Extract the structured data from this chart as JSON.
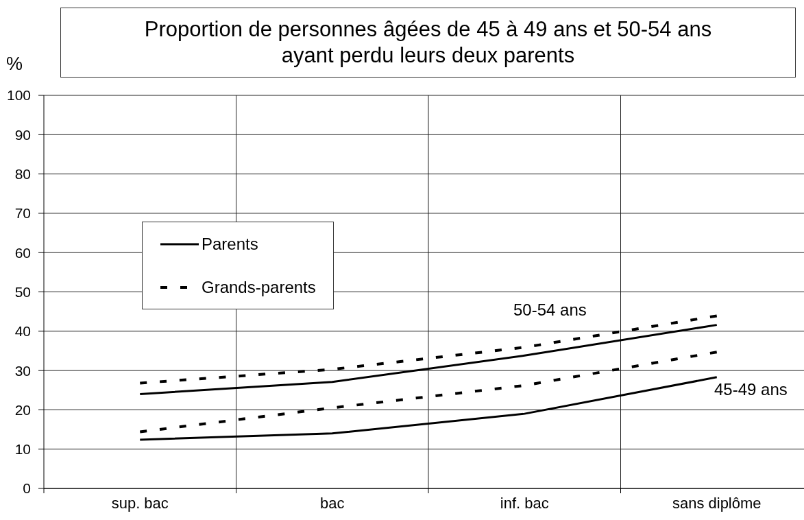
{
  "chart_data": {
    "type": "line",
    "title": "Proportion de personnes âgées de 45 à 49 ans et 50-54 ans ayant perdu leurs deux parents",
    "ylabel": "%",
    "categories": [
      "sup. bac",
      "bac",
      "inf. bac",
      "sans diplôme"
    ],
    "series": [
      {
        "name": "Parents",
        "color": "#000000",
        "line_style": "solid",
        "values": [
          24,
          27.1,
          33.8,
          41.6
        ]
      },
      {
        "name": "Grands-parents",
        "color": "#000000",
        "line_style": "dashed",
        "values": [
          26.8,
          30.3,
          35.9,
          43.9
        ]
      },
      {
        "color": "#000000",
        "line_style": "solid",
        "values": [
          12.4,
          14,
          19,
          28.3
        ]
      },
      {
        "color": "#000000",
        "line_style": "dashed",
        "values": [
          14.4,
          20.5,
          26.2,
          34.7
        ]
      }
    ],
    "ylim": [
      0,
      100
    ],
    "yticks": [
      0,
      10,
      20,
      30,
      40,
      50,
      60,
      70,
      80,
      90,
      100
    ],
    "grid": true,
    "legend": "left",
    "marker": "none",
    "annotations": [
      "50-54 ans",
      "45-49 ans"
    ]
  }
}
